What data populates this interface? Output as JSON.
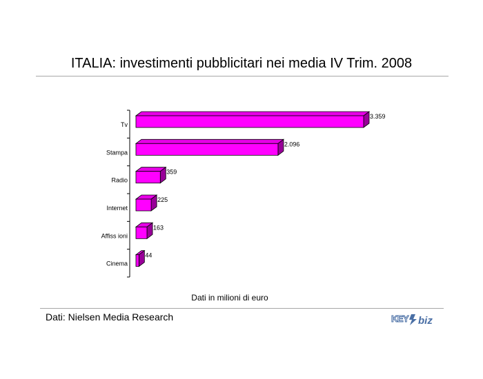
{
  "title": "ITALIA: investimenti pubblicitari nei media IV Trim. 2008",
  "caption": "Dati in milioni di euro",
  "source": "Dati: Nielsen Media Research",
  "logo_text": "KEY4biz",
  "colors": {
    "bar_front": "#ff00ff",
    "bar_top": "#e600e6",
    "bar_side": "#990099",
    "rule": "#a6a6a6"
  },
  "chart_data": {
    "type": "bar",
    "orientation": "horizontal",
    "style": "3d",
    "title": "ITALIA: investimenti pubblicitari nei media IV Trim. 2008",
    "xlabel": "Dati in milioni di euro",
    "ylabel": "",
    "categories": [
      "Tv",
      "Stampa",
      "Radio",
      "Internet",
      "Affiss ioni",
      "Cinema"
    ],
    "values": [
      3359,
      2096,
      359,
      225,
      163,
      44
    ],
    "value_labels": [
      "3.359",
      "2.096",
      "359",
      "225",
      "163",
      "44"
    ],
    "xlim": [
      0,
      3359
    ],
    "grid": false,
    "legend": "none"
  }
}
